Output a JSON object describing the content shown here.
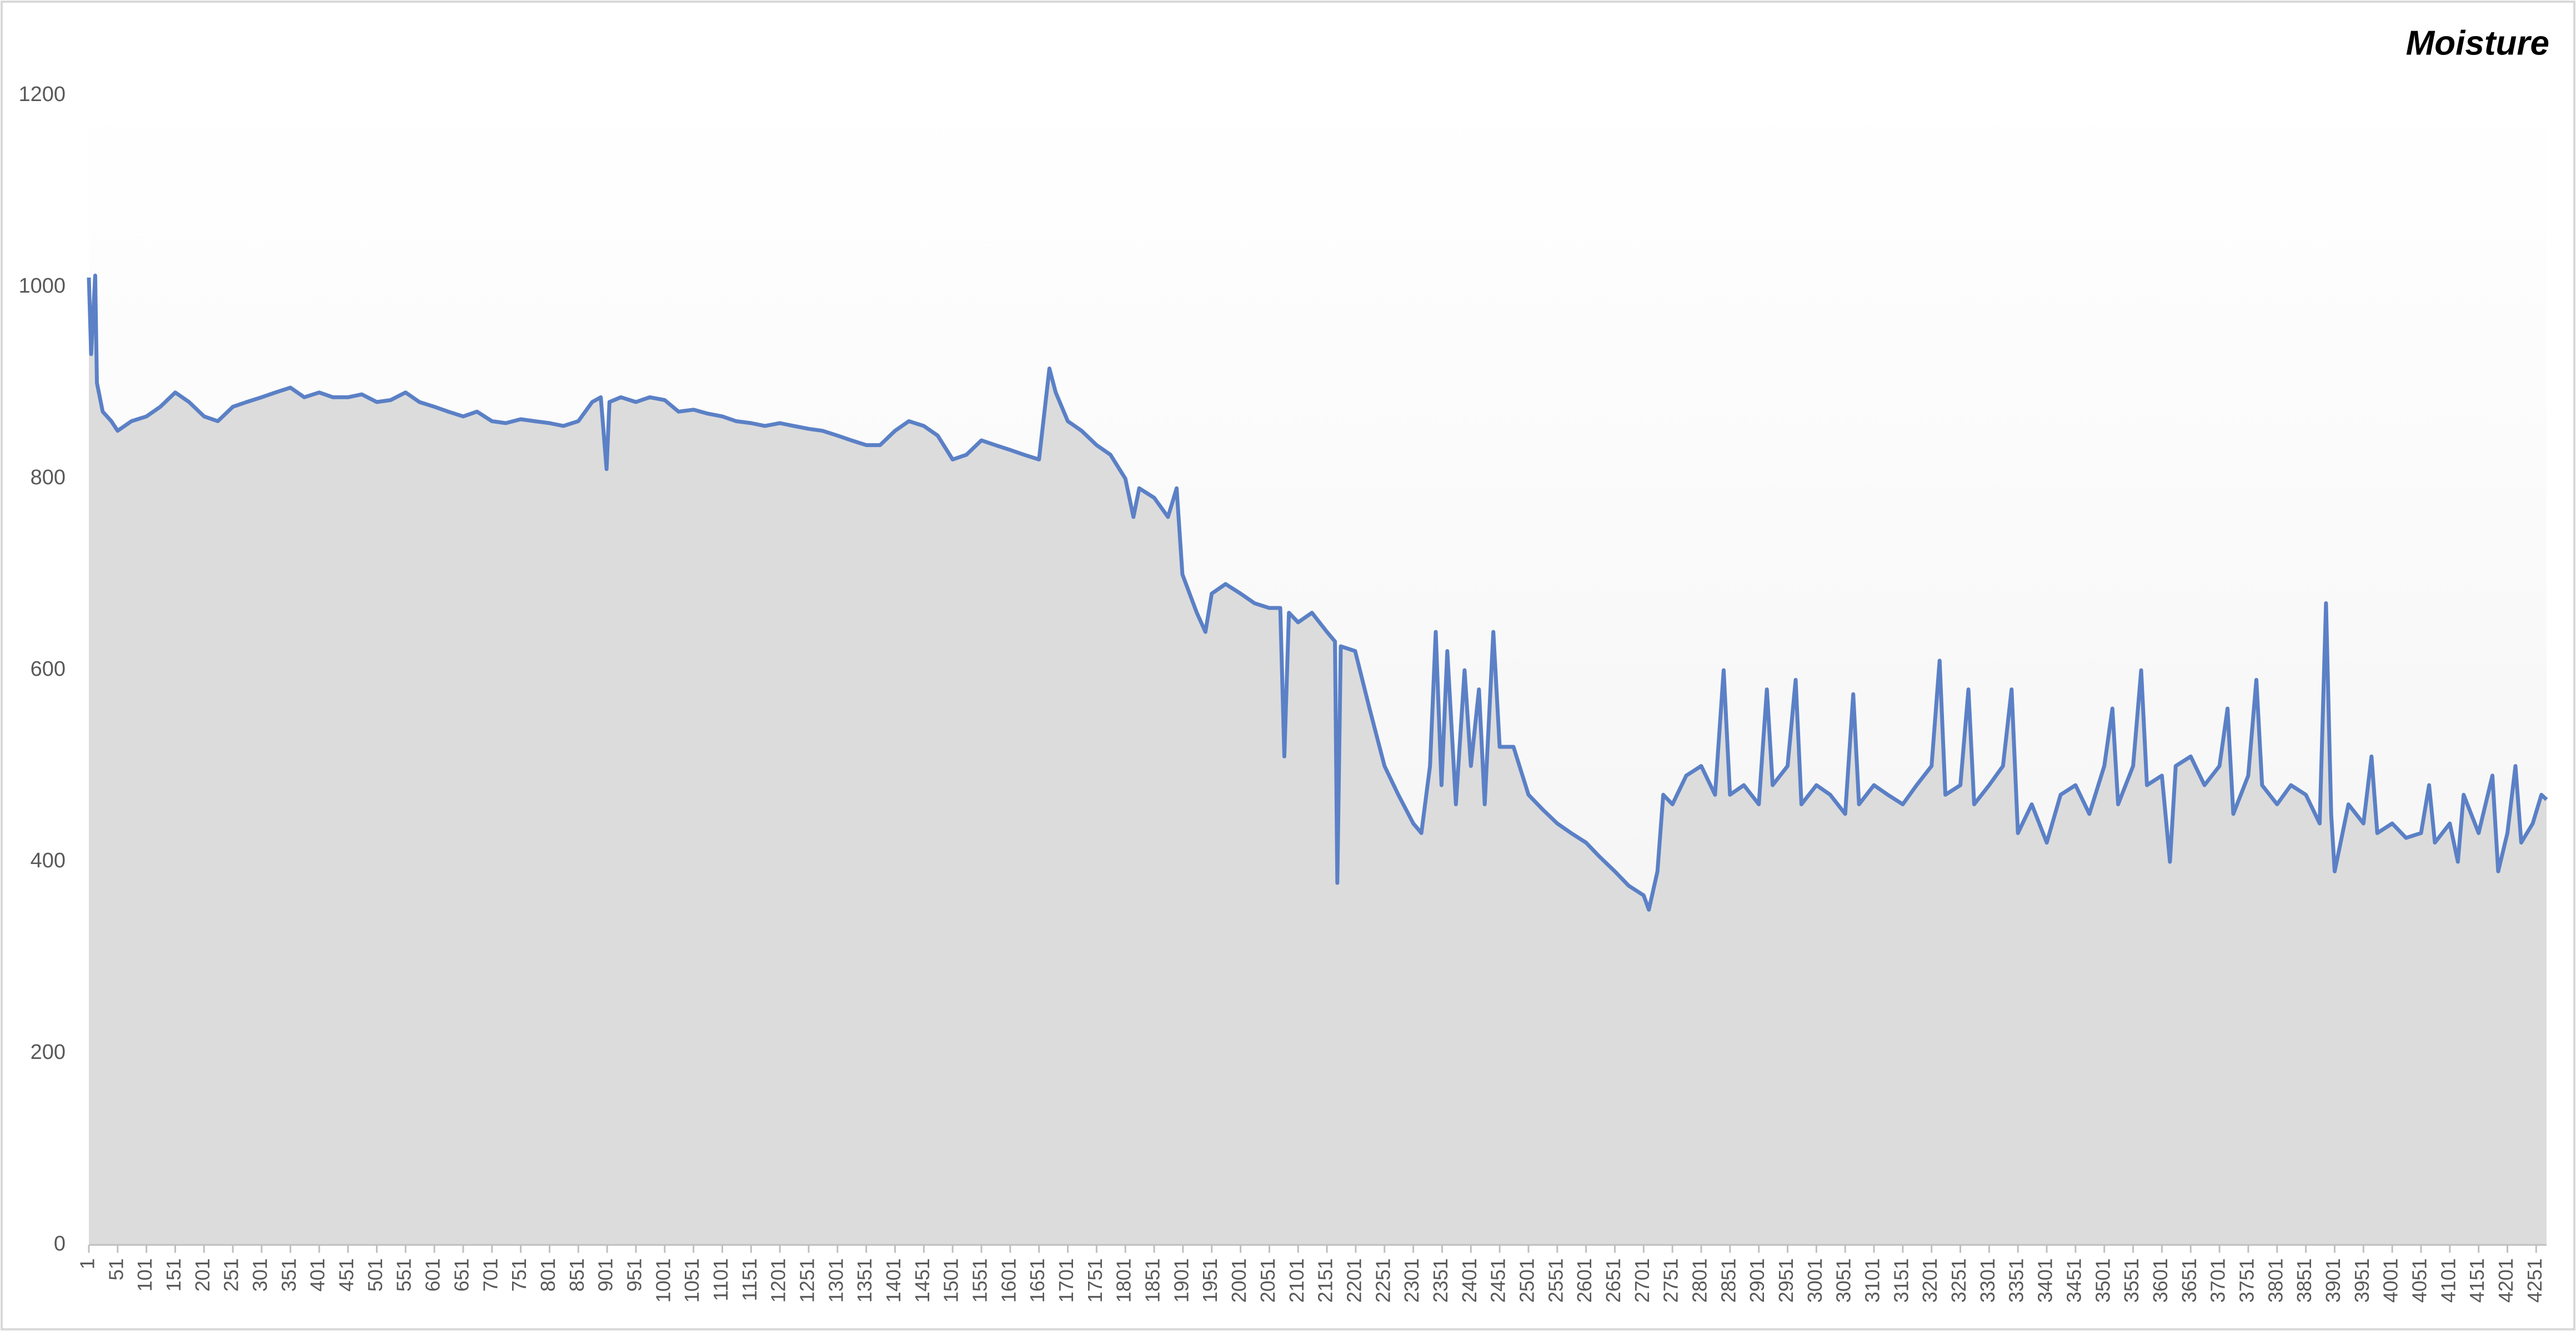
{
  "chart_data": {
    "type": "line",
    "title": "Moisture",
    "x": [
      1,
      5,
      12,
      15,
      25,
      40,
      51,
      75,
      101,
      125,
      151,
      175,
      201,
      225,
      251,
      275,
      301,
      325,
      351,
      375,
      401,
      425,
      451,
      475,
      501,
      525,
      551,
      575,
      601,
      625,
      651,
      675,
      701,
      725,
      751,
      775,
      801,
      825,
      851,
      875,
      890,
      900,
      905,
      925,
      951,
      975,
      1001,
      1025,
      1051,
      1075,
      1101,
      1125,
      1151,
      1175,
      1201,
      1225,
      1251,
      1275,
      1301,
      1325,
      1351,
      1375,
      1401,
      1425,
      1451,
      1475,
      1501,
      1525,
      1551,
      1575,
      1601,
      1625,
      1651,
      1669,
      1680,
      1701,
      1725,
      1751,
      1775,
      1801,
      1815,
      1825,
      1851,
      1875,
      1890,
      1900,
      1925,
      1940,
      1951,
      1975,
      2001,
      2025,
      2051,
      2070,
      2077,
      2085,
      2101,
      2125,
      2151,
      2165,
      2169,
      2175,
      2200,
      2225,
      2251,
      2275,
      2301,
      2315,
      2330,
      2340,
      2350,
      2360,
      2375,
      2390,
      2401,
      2415,
      2425,
      2440,
      2451,
      2475,
      2501,
      2525,
      2551,
      2575,
      2601,
      2625,
      2651,
      2675,
      2701,
      2710,
      2725,
      2735,
      2751,
      2775,
      2801,
      2825,
      2840,
      2851,
      2875,
      2901,
      2915,
      2925,
      2951,
      2965,
      2975,
      3001,
      3025,
      3051,
      3065,
      3075,
      3101,
      3125,
      3151,
      3175,
      3201,
      3215,
      3225,
      3251,
      3265,
      3275,
      3301,
      3325,
      3340,
      3351,
      3375,
      3401,
      3425,
      3451,
      3475,
      3501,
      3515,
      3525,
      3551,
      3565,
      3575,
      3601,
      3615,
      3625,
      3651,
      3675,
      3701,
      3715,
      3725,
      3751,
      3765,
      3775,
      3801,
      3825,
      3851,
      3875,
      3886,
      3895,
      3901,
      3925,
      3951,
      3965,
      3975,
      4001,
      4025,
      4051,
      4065,
      4075,
      4101,
      4115,
      4125,
      4151,
      4175,
      4185,
      4201,
      4215,
      4225,
      4245,
      4260,
      4269
    ],
    "values": [
      1010,
      930,
      1012,
      900,
      870,
      860,
      850,
      860,
      865,
      875,
      890,
      880,
      865,
      860,
      875,
      880,
      885,
      890,
      895,
      885,
      890,
      885,
      885,
      888,
      880,
      882,
      890,
      880,
      875,
      870,
      865,
      870,
      860,
      858,
      862,
      860,
      858,
      855,
      860,
      880,
      885,
      810,
      880,
      885,
      880,
      885,
      882,
      870,
      872,
      868,
      865,
      860,
      858,
      855,
      858,
      855,
      852,
      850,
      845,
      840,
      835,
      835,
      850,
      860,
      855,
      845,
      820,
      825,
      840,
      835,
      830,
      825,
      820,
      915,
      890,
      860,
      850,
      835,
      825,
      800,
      760,
      790,
      780,
      760,
      790,
      700,
      660,
      640,
      680,
      690,
      680,
      670,
      665,
      665,
      510,
      660,
      650,
      660,
      640,
      630,
      378,
      625,
      620,
      560,
      500,
      470,
      440,
      430,
      500,
      640,
      480,
      620,
      460,
      600,
      500,
      580,
      460,
      640,
      520,
      520,
      470,
      455,
      440,
      430,
      420,
      405,
      390,
      375,
      365,
      350,
      390,
      470,
      460,
      490,
      500,
      470,
      600,
      470,
      480,
      460,
      580,
      480,
      500,
      590,
      460,
      480,
      470,
      450,
      575,
      460,
      480,
      470,
      460,
      480,
      500,
      610,
      470,
      480,
      580,
      460,
      480,
      500,
      580,
      430,
      460,
      420,
      470,
      480,
      450,
      500,
      560,
      460,
      500,
      600,
      480,
      490,
      400,
      500,
      510,
      480,
      500,
      560,
      450,
      490,
      590,
      480,
      460,
      480,
      470,
      440,
      670,
      450,
      390,
      460,
      440,
      510,
      430,
      440,
      425,
      430,
      480,
      420,
      440,
      400,
      470,
      430,
      490,
      390,
      430,
      500,
      420,
      440,
      470,
      465
    ],
    "color": "#5b80c6",
    "area_color": "#dcdcdc",
    "xlim": [
      1,
      4269
    ],
    "xticks": [
      1,
      51,
      101,
      151,
      201,
      251,
      301,
      351,
      401,
      451,
      501,
      551,
      601,
      651,
      701,
      751,
      801,
      851,
      901,
      951,
      1001,
      1051,
      1101,
      1151,
      1201,
      1251,
      1301,
      1351,
      1401,
      1451,
      1501,
      1551,
      1601,
      1651,
      1701,
      1751,
      1801,
      1851,
      1901,
      1951,
      2001,
      2051,
      2101,
      2151,
      2201,
      2251,
      2301,
      2351,
      2401,
      2451,
      2501,
      2551,
      2601,
      2651,
      2701,
      2751,
      2801,
      2851,
      2901,
      2951,
      3001,
      3051,
      3101,
      3151,
      3201,
      3251,
      3301,
      3351,
      3401,
      3451,
      3501,
      3551,
      3601,
      3651,
      3701,
      3751,
      3801,
      3851,
      3901,
      3951,
      4001,
      4051,
      4101,
      4151,
      4201,
      4251
    ],
    "ylim": [
      0,
      1200
    ],
    "yticks": [
      0,
      200,
      400,
      600,
      800,
      1000,
      1200
    ],
    "grid": false
  }
}
